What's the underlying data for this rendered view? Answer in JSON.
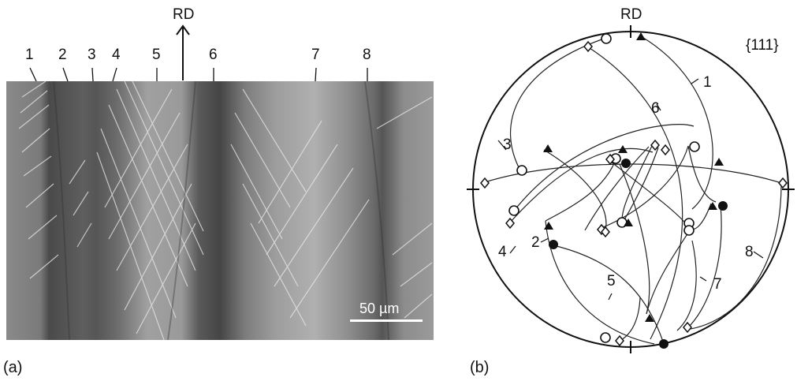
{
  "panel_a": {
    "panel_label": "(a)",
    "direction_label": "RD",
    "grain_labels": [
      "1",
      "2",
      "3",
      "4",
      "5",
      "6",
      "7",
      "8"
    ],
    "scale_bar_text": "50 µm"
  },
  "panel_b": {
    "panel_label": "(b)",
    "direction_label": "RD",
    "pole_figure_label": "{111}",
    "grain_labels": [
      "1",
      "2",
      "3",
      "4",
      "5",
      "6",
      "7",
      "8"
    ]
  },
  "marker_symbols": [
    "open-circle",
    "filled-circle",
    "filled-triangle",
    "open-diamond"
  ],
  "colors": {
    "ink": "#111111",
    "background": "#ffffff",
    "micrograph_gray": "#7a7a7a"
  }
}
